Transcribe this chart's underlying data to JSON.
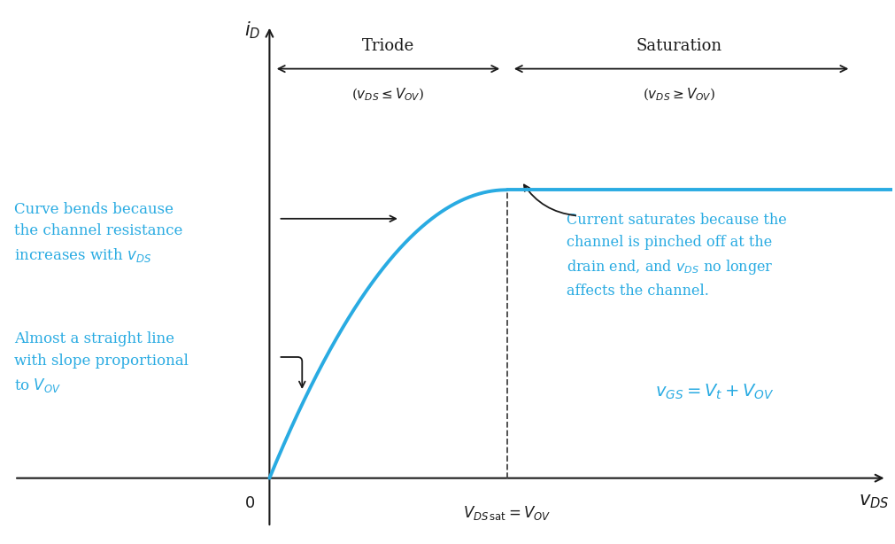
{
  "background_color": "#ffffff",
  "curve_color": "#29ABE2",
  "axis_color": "#1a1a1a",
  "annotation_color": "#29ABE2",
  "arrow_color": "#1a1a1a",
  "vov": 4.0,
  "i_sat": 1.0,
  "x_max": 10.5,
  "x_min": -4.5,
  "y_min": -0.22,
  "y_max": 1.65,
  "figsize": [
    10.11,
    6.14
  ],
  "dpi": 100,
  "triode_label": "Triode",
  "triode_sub": "($v_{DS} \\leq V_{OV}$)",
  "saturation_label": "Saturation",
  "saturation_sub": "($v_{DS} \\geq V_{OV}$)",
  "ann1_line1": "Curve bends because",
  "ann1_line2": "the channel resistance",
  "ann1_line3": "increases with $v_{DS}$",
  "ann2_line1": "Almost a straight line",
  "ann2_line2": "with slope proportional",
  "ann2_line3": "to $V_{OV}$",
  "ann3_line1": "Current saturates because the",
  "ann3_line2": "channel is pinched off at the",
  "ann3_line3": "drain end, and $v_{DS}$ no longer",
  "ann3_line4": "affects the channel.",
  "ann4": "$v_{GS} = V_t + V_{OV}$",
  "xsat_label": "$V_{DS\\,\\mathrm{sat}} = V_{OV}$",
  "origin_label": "0",
  "ylabel": "$i_D$",
  "xlabel": "$v_{DS}$"
}
